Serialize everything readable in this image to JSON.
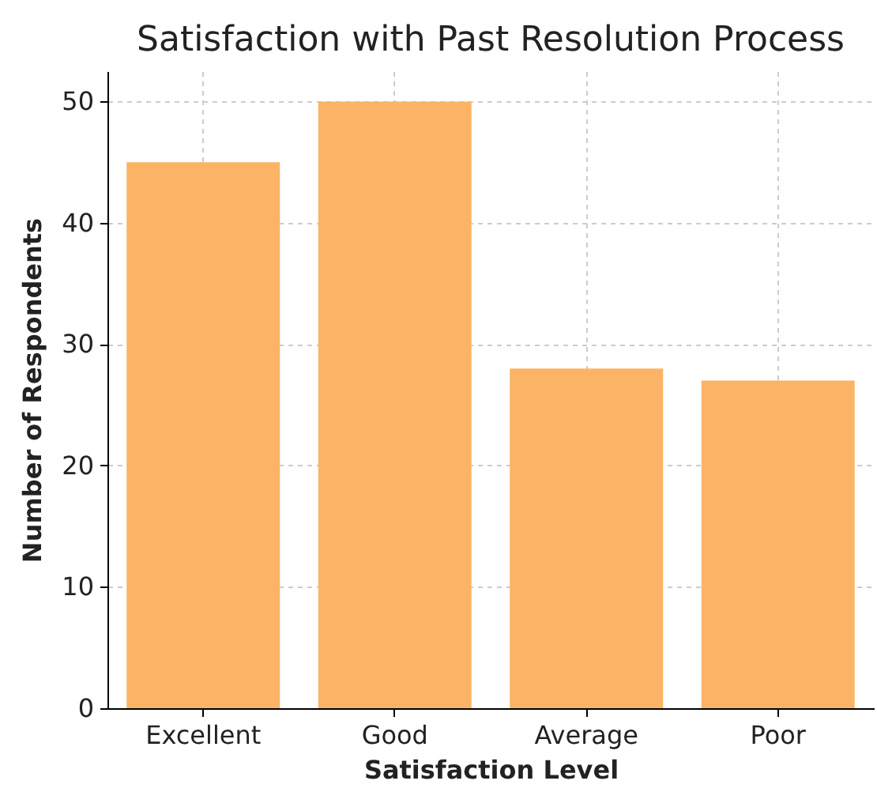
{
  "chart_data": {
    "type": "bar",
    "title": "Satisfaction with Past Resolution Process",
    "xlabel": "Satisfaction Level",
    "ylabel": "Number of Respondents",
    "categories": [
      "Excellent",
      "Good",
      "Average",
      "Poor"
    ],
    "values": [
      45,
      50,
      28,
      27
    ],
    "color": "#fbb465",
    "ylim": [
      0,
      52.5
    ],
    "yticks": [
      0,
      10,
      20,
      30,
      40,
      50
    ],
    "grid": true
  }
}
